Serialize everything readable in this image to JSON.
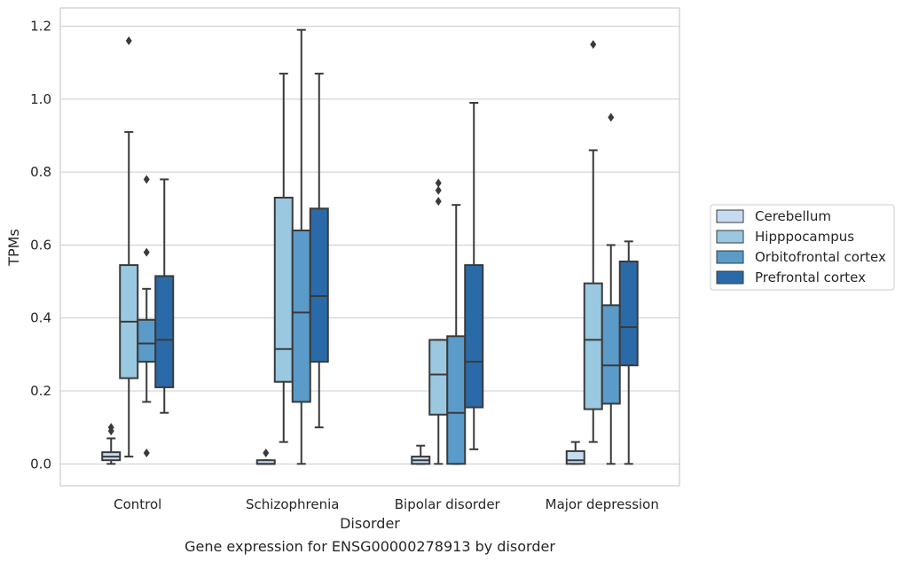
{
  "chart_data": {
    "type": "box",
    "title": "",
    "caption": "Gene expression for ENSG00000278913 by disorder",
    "xlabel": "Disorder",
    "ylabel": "TPMs",
    "ylim": [
      -0.06,
      1.25
    ],
    "yticks": [
      0.0,
      0.2,
      0.4,
      0.6,
      0.8,
      1.0,
      1.2
    ],
    "ytick_labels": [
      "0.0",
      "0.2",
      "0.4",
      "0.6",
      "0.8",
      "1.0",
      "1.2"
    ],
    "categories": [
      "Control",
      "Schizophrenia",
      "Bipolar disorder",
      "Major depression"
    ],
    "grid": "horizontal",
    "legend_position": "right",
    "series": [
      {
        "name": "Cerebellum",
        "color": "#c5dbef",
        "boxes": [
          {
            "whislo": 0.0,
            "q1": 0.01,
            "med": 0.02,
            "q3": 0.032,
            "whishi": 0.07,
            "fliers": [
              0.09,
              0.1
            ]
          },
          {
            "whislo": 0.0,
            "q1": 0.0,
            "med": 0.0,
            "q3": 0.01,
            "whishi": 0.01,
            "fliers": [
              0.03
            ]
          },
          {
            "whislo": 0.0,
            "q1": 0.0,
            "med": 0.01,
            "q3": 0.02,
            "whishi": 0.05,
            "fliers": []
          },
          {
            "whislo": 0.0,
            "q1": 0.0,
            "med": 0.01,
            "q3": 0.035,
            "whishi": 0.06,
            "fliers": []
          }
        ]
      },
      {
        "name": "Hipppocampus",
        "color": "#9ac8e0",
        "boxes": [
          {
            "whislo": 0.02,
            "q1": 0.235,
            "med": 0.39,
            "q3": 0.545,
            "whishi": 0.91,
            "fliers": [
              1.16
            ]
          },
          {
            "whislo": 0.06,
            "q1": 0.225,
            "med": 0.315,
            "q3": 0.73,
            "whishi": 1.07,
            "fliers": []
          },
          {
            "whislo": 0.0,
            "q1": 0.135,
            "med": 0.245,
            "q3": 0.34,
            "whishi": 0.34,
            "fliers": [
              0.72,
              0.75,
              0.77
            ]
          },
          {
            "whislo": 0.06,
            "q1": 0.15,
            "med": 0.34,
            "q3": 0.495,
            "whishi": 0.86,
            "fliers": [
              1.15
            ]
          }
        ]
      },
      {
        "name": "Orbitofrontal cortex",
        "color": "#5a9bc9",
        "boxes": [
          {
            "whislo": 0.17,
            "q1": 0.28,
            "med": 0.33,
            "q3": 0.395,
            "whishi": 0.48,
            "fliers": [
              0.03,
              0.58,
              0.78
            ]
          },
          {
            "whislo": 0.0,
            "q1": 0.17,
            "med": 0.415,
            "q3": 0.64,
            "whishi": 1.19,
            "fliers": []
          },
          {
            "whislo": 0.0,
            "q1": 0.0,
            "med": 0.14,
            "q3": 0.35,
            "whishi": 0.71,
            "fliers": []
          },
          {
            "whislo": 0.0,
            "q1": 0.165,
            "med": 0.27,
            "q3": 0.435,
            "whishi": 0.6,
            "fliers": [
              0.95
            ]
          }
        ]
      },
      {
        "name": "Prefrontal cortex",
        "color": "#2b6aa8",
        "boxes": [
          {
            "whislo": 0.14,
            "q1": 0.21,
            "med": 0.34,
            "q3": 0.515,
            "whishi": 0.78,
            "fliers": []
          },
          {
            "whislo": 0.1,
            "q1": 0.28,
            "med": 0.46,
            "q3": 0.7,
            "whishi": 1.07,
            "fliers": []
          },
          {
            "whislo": 0.04,
            "q1": 0.155,
            "med": 0.28,
            "q3": 0.545,
            "whishi": 0.99,
            "fliers": []
          },
          {
            "whislo": 0.0,
            "q1": 0.27,
            "med": 0.375,
            "q3": 0.555,
            "whishi": 0.61,
            "fliers": []
          }
        ]
      }
    ]
  }
}
